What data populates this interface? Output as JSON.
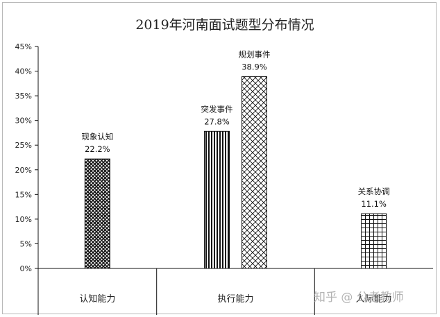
{
  "chart_data": {
    "type": "bar",
    "title": "2019年河南面试题型分布情况",
    "xlabel": "",
    "ylabel": "",
    "ylim": [
      0,
      45
    ],
    "yticks": [
      0,
      5,
      10,
      15,
      20,
      25,
      30,
      35,
      40,
      45
    ],
    "ytick_labels": [
      "0%",
      "5%",
      "10%",
      "15%",
      "20%",
      "25%",
      "30%",
      "35%",
      "40%",
      "45%"
    ],
    "grid": false,
    "groups": [
      {
        "label": "认知能力",
        "bars": [
          {
            "name": "现象认知",
            "value": 22.2,
            "label": "22.2%",
            "pattern": "diamond"
          }
        ]
      },
      {
        "label": "执行能力",
        "bars": [
          {
            "name": "突发事件",
            "value": 27.8,
            "label": "27.8%",
            "pattern": "vertical"
          },
          {
            "name": "规划事件",
            "value": 38.9,
            "label": "38.9%",
            "pattern": "crosshatch"
          }
        ]
      },
      {
        "label": "人际能力",
        "bars": [
          {
            "name": "关系协调",
            "value": 11.1,
            "label": "11.1%",
            "pattern": "grid"
          }
        ]
      }
    ]
  },
  "watermark": {
    "text": "知乎 @ 公考教师"
  }
}
